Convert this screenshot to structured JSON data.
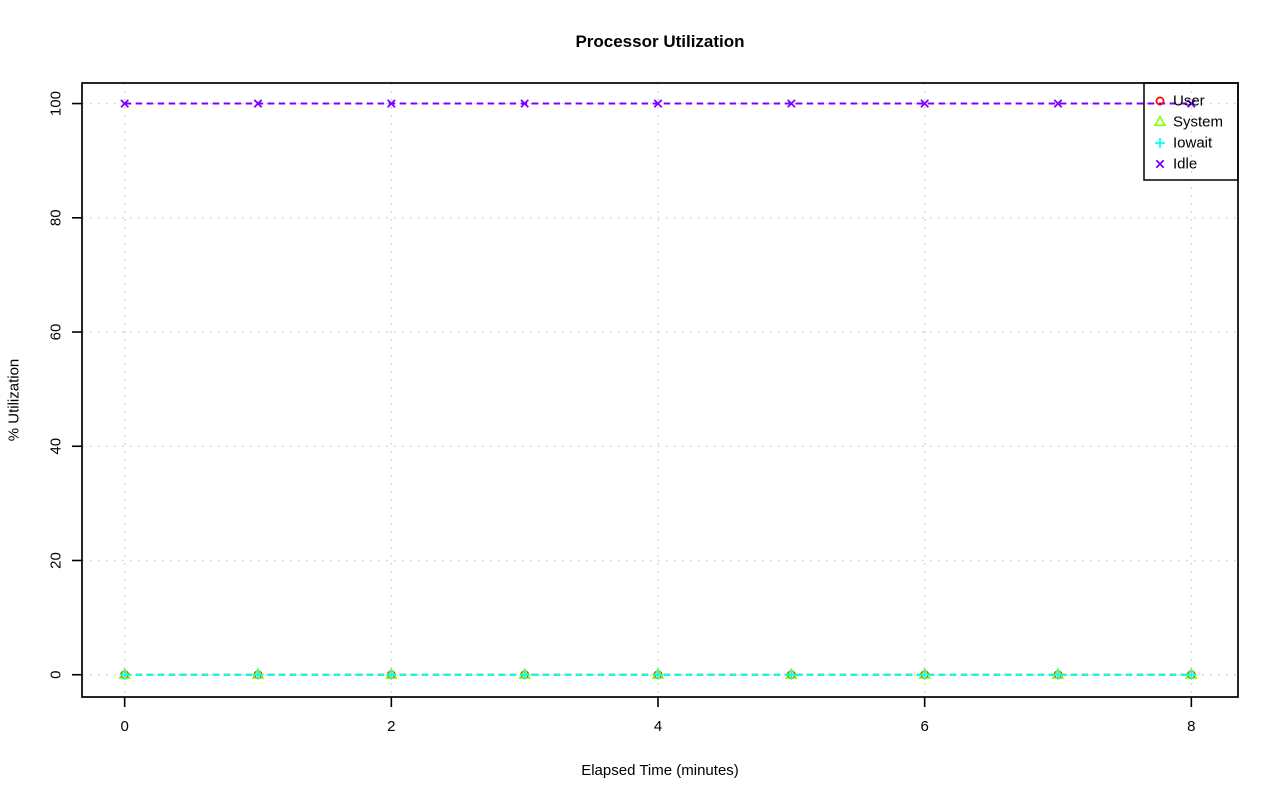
{
  "window": {
    "background": "#ffffff"
  },
  "chart_data": {
    "type": "line",
    "title": "Processor Utilization",
    "xlabel": "Elapsed Time (minutes)",
    "ylabel": "% Utilization",
    "x": [
      0,
      1,
      2,
      3,
      4,
      5,
      6,
      7,
      8
    ],
    "series": [
      {
        "name": "User",
        "color": "#FF0000",
        "marker": "circle",
        "values": [
          0,
          0,
          0,
          0,
          0,
          0,
          0,
          0,
          0
        ]
      },
      {
        "name": "System",
        "color": "#80FF00",
        "marker": "triangle",
        "values": [
          0,
          0,
          0,
          0,
          0,
          0,
          0,
          0,
          0
        ]
      },
      {
        "name": "Iowait",
        "color": "#00FFFF",
        "marker": "plus",
        "values": [
          0,
          0,
          0,
          0,
          0,
          0,
          0,
          0,
          0
        ]
      },
      {
        "name": "Idle",
        "color": "#8000FF",
        "marker": "x",
        "values": [
          100,
          100,
          100,
          100,
          100,
          100,
          100,
          100,
          100
        ]
      }
    ],
    "xticks": [
      0,
      2,
      4,
      6,
      8
    ],
    "yticks": [
      0,
      20,
      40,
      60,
      80,
      100
    ],
    "xlim": [
      -0.32,
      8.35
    ],
    "ylim": [
      -3.9,
      103.6
    ],
    "grid": true,
    "grid_color": "#CFCFCF",
    "grid_style": "dotted",
    "line_style": "dashed",
    "axis_color": "#000000",
    "legend": {
      "position": "top-right",
      "entries": [
        "User",
        "System",
        "Iowait",
        "Idle"
      ]
    }
  }
}
